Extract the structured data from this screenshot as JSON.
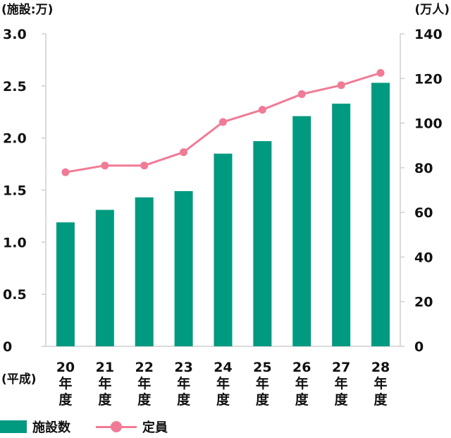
{
  "chart_data": {
    "type": "bar",
    "categories": [
      [
        "20",
        "年",
        "度"
      ],
      [
        "21",
        "年",
        "度"
      ],
      [
        "22",
        "年",
        "度"
      ],
      [
        "23",
        "年",
        "度"
      ],
      [
        "24",
        "年",
        "度"
      ],
      [
        "25",
        "年",
        "度"
      ],
      [
        "26",
        "年",
        "度"
      ],
      [
        "27",
        "年",
        "度"
      ],
      [
        "28",
        "年",
        "度"
      ]
    ],
    "category_prefix": "(平成)",
    "left_axis": {
      "unit_label": "(施設:万)",
      "ticks": [
        "0",
        "0.5",
        "1.0",
        "1.5",
        "2.0",
        "2.5",
        "3.0"
      ],
      "ylim": [
        0,
        3.0
      ]
    },
    "right_axis": {
      "unit_label": "(万人)",
      "ticks": [
        "0",
        "20",
        "40",
        "60",
        "80",
        "100",
        "120",
        "140"
      ],
      "ylim": [
        0,
        140
      ]
    },
    "series": [
      {
        "name": "施設数",
        "type": "bar",
        "axis": "left",
        "color": "#009a80",
        "values": [
          1.19,
          1.31,
          1.43,
          1.49,
          1.85,
          1.97,
          2.21,
          2.33,
          2.53
        ]
      },
      {
        "name": "定員",
        "type": "line",
        "axis": "right",
        "color": "#f07b96",
        "values": [
          78,
          81,
          81,
          87,
          100.5,
          106,
          113,
          117,
          122.5
        ]
      }
    ],
    "grid": {
      "horizontal": false,
      "vertical": false
    },
    "legend_position": "bottom-left"
  }
}
